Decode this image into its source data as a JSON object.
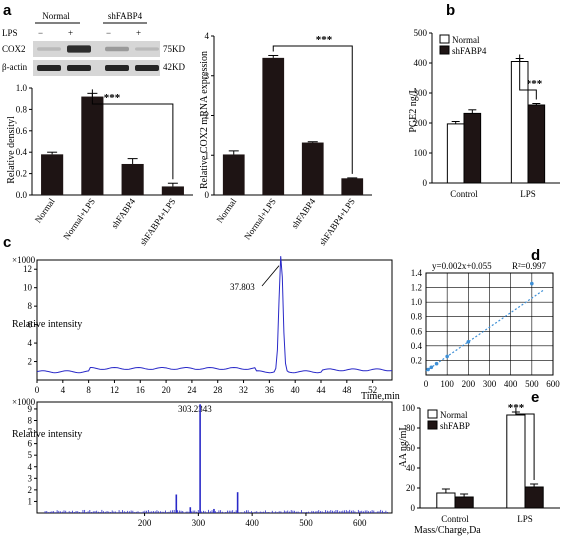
{
  "panel_labels": {
    "a": "a",
    "b": "b",
    "c": "c",
    "d": "d",
    "e": "e"
  },
  "western_blot": {
    "group_headers": [
      "Normal",
      "shFABP4"
    ],
    "lps_label": "LPS",
    "lps_signs": [
      "−",
      "+",
      "−",
      "+"
    ],
    "bands": [
      {
        "name": "COX2",
        "size": "75KD",
        "intensities": [
          0.12,
          0.85,
          0.3,
          0.06
        ]
      },
      {
        "name": "β-actin",
        "size": "42KD",
        "intensities": [
          0.9,
          0.9,
          0.9,
          0.9
        ]
      }
    ]
  },
  "chart_data": [
    {
      "id": "a-densitometry",
      "type": "bar",
      "categories": [
        "Normal",
        "Normal+LPS",
        "shFABP4",
        "shFABP4+LPS"
      ],
      "values": [
        0.38,
        0.92,
        0.29,
        0.08
      ],
      "errors": [
        0.02,
        0.03,
        0.05,
        0.03
      ],
      "ylabel": "Relative densityl",
      "ylim": [
        0,
        1.0
      ],
      "yticks": [
        "0.0",
        "0.2",
        "0.4",
        "0.6",
        "0.8",
        "1.0"
      ],
      "significance": "***",
      "bar_color": "#1e1414"
    },
    {
      "id": "a-mrna",
      "type": "bar",
      "categories": [
        "Normal",
        "Normal+LPS",
        "shFABP4",
        "shFABP4+LPS"
      ],
      "values": [
        1.02,
        3.45,
        1.32,
        0.42
      ],
      "errors": [
        0.09,
        0.06,
        0.02,
        0.01
      ],
      "ylabel": "Relative COX2 mRNA expression",
      "ylim": [
        0,
        4
      ],
      "yticks": [
        "0",
        "1",
        "2",
        "3",
        "4"
      ],
      "significance": "***",
      "bar_color": "#1e1414"
    },
    {
      "id": "b-pge2",
      "type": "bar",
      "categories": [
        "Control",
        "LPS"
      ],
      "series": [
        {
          "name": "Normal",
          "values": [
            197,
            405
          ],
          "errors": [
            8,
            10
          ],
          "color": "#ffffff"
        },
        {
          "name": "shFABP4",
          "values": [
            232,
            260
          ],
          "errors": [
            12,
            5
          ],
          "color": "#1e1414"
        }
      ],
      "ylabel": "PGE2 ng/L",
      "ylim": [
        0,
        500
      ],
      "yticks": [
        "0",
        "100",
        "200",
        "300",
        "400",
        "500"
      ],
      "significance": "***",
      "legend": "top-left"
    },
    {
      "id": "c-chromatogram",
      "type": "line",
      "x_range": [
        0,
        55
      ],
      "xticks": [
        "0",
        "4",
        "8",
        "12",
        "16",
        "20",
        "24",
        "28",
        "32",
        "36",
        "40",
        "44",
        "48",
        "52"
      ],
      "yticks": [
        "2",
        "4",
        "6",
        "8",
        "10",
        "12"
      ],
      "ylim": [
        0,
        13
      ],
      "xlabel": "Time,min",
      "ylabel": "Relative intensity",
      "multiplier": "×1000",
      "peak": {
        "x": 37.803,
        "y": 12.6,
        "label": "37.803"
      },
      "color": "#2929c8"
    },
    {
      "id": "c-mass-spectrum",
      "type": "bar",
      "x_range": [
        0,
        660
      ],
      "xticks": [
        "200",
        "300",
        "400",
        "500",
        "600"
      ],
      "yticks": [
        "1",
        "2",
        "3",
        "4",
        "5",
        "6",
        "7",
        "8",
        "9"
      ],
      "ylim": [
        0,
        9.6
      ],
      "xlabel": "Mass/Charge,Da",
      "ylabel": "Relative intensity",
      "multiplier": "×1000",
      "peak": {
        "x": 303.2343,
        "y": 9.4,
        "label": "303.2343"
      },
      "major_peaks": [
        {
          "x": 303.2343,
          "y": 9.4
        },
        {
          "x": 259,
          "y": 1.6
        },
        {
          "x": 373,
          "y": 1.8
        },
        {
          "x": 285,
          "y": 0.5
        },
        {
          "x": 329,
          "y": 0.35
        }
      ],
      "color": "#2929c8"
    },
    {
      "id": "d-standard-curve",
      "type": "scatter",
      "x": [
        10,
        25,
        50,
        100,
        200,
        500
      ],
      "y": [
        0.075,
        0.105,
        0.155,
        0.255,
        0.455,
        1.255
      ],
      "equation": "y=0.002x+0.055",
      "r2": "R²=0.997",
      "xlim": [
        0,
        600
      ],
      "ylim": [
        0,
        1.4
      ],
      "xticks": [
        "0",
        "100",
        "200",
        "300",
        "400",
        "500",
        "600"
      ],
      "yticks": [
        "0.2",
        "0.4",
        "0.6",
        "0.8",
        "1.0",
        "1.2",
        "1.4"
      ],
      "grid": true,
      "color": "#3d8fd6"
    },
    {
      "id": "e-aa",
      "type": "bar",
      "categories": [
        "Control",
        "LPS"
      ],
      "series": [
        {
          "name": "Normal",
          "values": [
            15,
            93
          ],
          "errors": [
            4,
            3
          ],
          "color": "#ffffff"
        },
        {
          "name": "shFABP",
          "values": [
            11,
            21
          ],
          "errors": [
            3,
            3
          ],
          "color": "#1e1414"
        }
      ],
      "ylabel": "AA ng/mL",
      "ylim": [
        0,
        100
      ],
      "yticks": [
        "0",
        "20",
        "40",
        "60",
        "80",
        "100"
      ],
      "significance": "***",
      "legend": "top-left"
    }
  ]
}
